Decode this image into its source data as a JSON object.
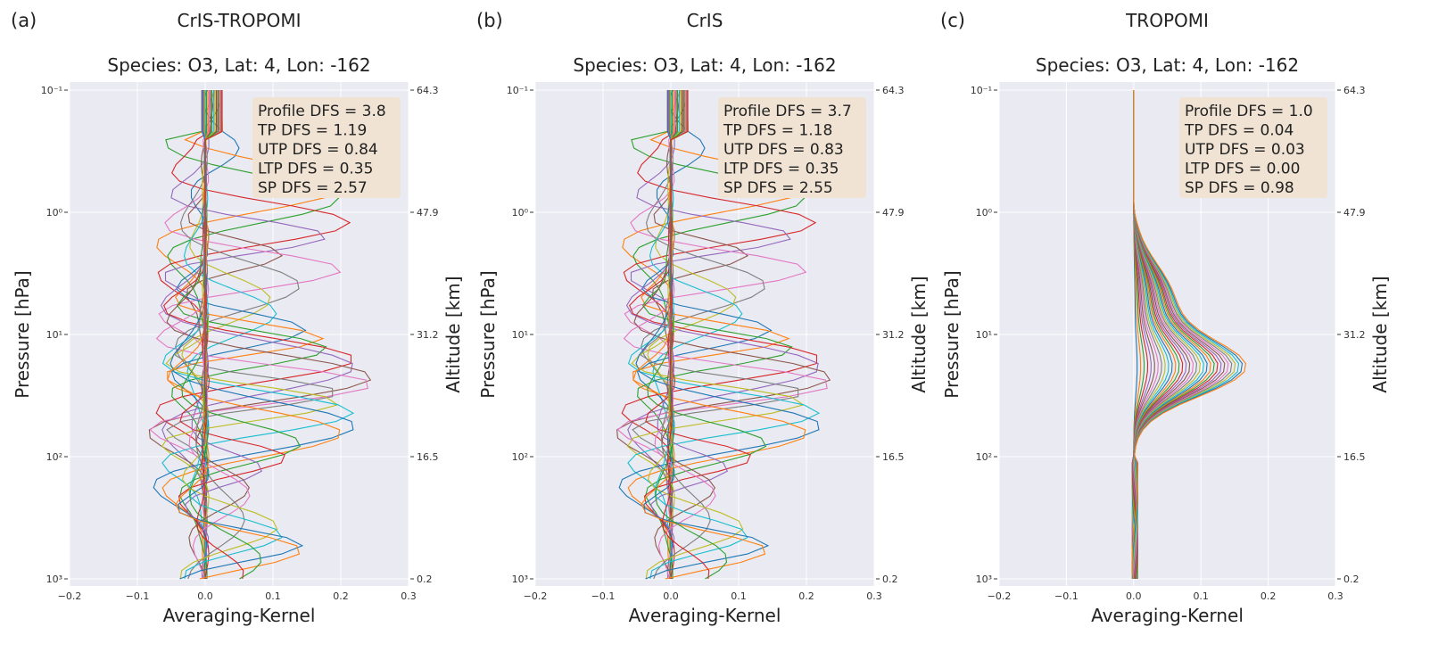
{
  "chart_data": [
    {
      "type": "line",
      "panel_label": "(a)",
      "title": "CrIS-TROPOMI",
      "subtitle": "Species: O3, Lat: 4, Lon: -162",
      "xlabel": "Averaging-Kernel",
      "ylabel": "Pressure [hPa]",
      "y2label": "Altitude [km]",
      "xlim": [
        -0.2,
        0.3
      ],
      "ylim_hPa": [
        1000,
        0.1
      ],
      "yscale": "log",
      "xticks": [
        "−0.2",
        "−0.1",
        "0.0",
        "0.1",
        "0.2",
        "0.3"
      ],
      "xtick_values": [
        -0.2,
        -0.1,
        0.0,
        0.1,
        0.2,
        0.3
      ],
      "yticks": [
        "10⁻¹",
        "10⁰",
        "10¹",
        "10²",
        "10³"
      ],
      "ytick_values": [
        0.1,
        1,
        10,
        100,
        1000
      ],
      "y2ticks": [
        "64.3",
        "47.9",
        "31.2",
        "16.5",
        "0.2"
      ],
      "grid": true,
      "stats": [
        "Profile DFS = 3.8",
        "TP DFS = 1.19",
        "UTP DFS = 0.84",
        "LTP DFS = 0.35",
        "SP DFS = 2.57"
      ],
      "kernel_peaks_hPa_value": [
        [
          0.3,
          0.04
        ],
        [
          0.6,
          0.22
        ],
        [
          0.8,
          0.2
        ],
        [
          1.2,
          0.23
        ],
        [
          1.6,
          0.18
        ],
        [
          2.2,
          0.13
        ],
        [
          3,
          0.2
        ],
        [
          4,
          0.16
        ],
        [
          5,
          0.09
        ],
        [
          7,
          0.12
        ],
        [
          9,
          0.15
        ],
        [
          11,
          0.18
        ],
        [
          13,
          0.2
        ],
        [
          16,
          0.22
        ],
        [
          19,
          0.24
        ],
        [
          22,
          0.26
        ],
        [
          26,
          0.25
        ],
        [
          30,
          0.22
        ],
        [
          36,
          0.2
        ],
        [
          45,
          0.23
        ],
        [
          55,
          0.24
        ],
        [
          65,
          0.2
        ],
        [
          80,
          0.16
        ],
        [
          100,
          0.12
        ],
        [
          130,
          0.09
        ],
        [
          170,
          0.07
        ],
        [
          220,
          0.06
        ],
        [
          300,
          0.07
        ],
        [
          380,
          0.1
        ],
        [
          450,
          0.13
        ],
        [
          520,
          0.15
        ],
        [
          600,
          0.14
        ],
        [
          700,
          0.1
        ],
        [
          850,
          0.05
        ]
      ]
    },
    {
      "type": "line",
      "panel_label": "(b)",
      "title": "CrIS",
      "subtitle": "Species: O3, Lat: 4, Lon: -162",
      "xlabel": "Averaging-Kernel",
      "ylabel": "Pressure [hPa]",
      "y2label": "Altitude [km]",
      "xlim": [
        -0.2,
        0.3
      ],
      "ylim_hPa": [
        1000,
        0.1
      ],
      "yscale": "log",
      "xticks": [
        "−0.2",
        "−0.1",
        "0.0",
        "0.1",
        "0.2",
        "0.3"
      ],
      "xtick_values": [
        -0.2,
        -0.1,
        0.0,
        0.1,
        0.2,
        0.3
      ],
      "yticks": [
        "10⁻¹",
        "10⁰",
        "10¹",
        "10²",
        "10³"
      ],
      "ytick_values": [
        0.1,
        1,
        10,
        100,
        1000
      ],
      "y2ticks": [
        "64.3",
        "47.9",
        "31.2",
        "16.5",
        "0.2"
      ],
      "grid": true,
      "stats": [
        "Profile DFS = 3.7",
        "TP DFS = 1.18",
        "UTP DFS = 0.83",
        "LTP DFS = 0.35",
        "SP DFS = 2.55"
      ],
      "kernel_peaks_hPa_value": [
        [
          0.3,
          0.04
        ],
        [
          0.6,
          0.22
        ],
        [
          0.8,
          0.2
        ],
        [
          1.2,
          0.23
        ],
        [
          1.6,
          0.18
        ],
        [
          2.2,
          0.13
        ],
        [
          3,
          0.2
        ],
        [
          4,
          0.16
        ],
        [
          5,
          0.09
        ],
        [
          7,
          0.12
        ],
        [
          9,
          0.15
        ],
        [
          11,
          0.18
        ],
        [
          13,
          0.2
        ],
        [
          16,
          0.22
        ],
        [
          19,
          0.24
        ],
        [
          22,
          0.25
        ],
        [
          26,
          0.24
        ],
        [
          30,
          0.22
        ],
        [
          36,
          0.2
        ],
        [
          45,
          0.23
        ],
        [
          55,
          0.24
        ],
        [
          65,
          0.2
        ],
        [
          80,
          0.16
        ],
        [
          100,
          0.12
        ],
        [
          130,
          0.09
        ],
        [
          170,
          0.07
        ],
        [
          220,
          0.06
        ],
        [
          300,
          0.07
        ],
        [
          380,
          0.1
        ],
        [
          450,
          0.13
        ],
        [
          520,
          0.15
        ],
        [
          600,
          0.14
        ],
        [
          700,
          0.1
        ],
        [
          850,
          0.05
        ]
      ]
    },
    {
      "type": "line",
      "panel_label": "(c)",
      "title": "TROPOMI",
      "subtitle": "Species: O3, Lat: 4, Lon: -162",
      "xlabel": "Averaging-Kernel",
      "ylabel": "Pressure [hPa]",
      "y2label": "Altitude [km]",
      "xlim": [
        -0.2,
        0.3
      ],
      "ylim_hPa": [
        1000,
        0.1
      ],
      "yscale": "log",
      "xticks": [
        "−0.2",
        "−0.1",
        "0.0",
        "0.1",
        "0.2",
        "0.3"
      ],
      "xtick_values": [
        -0.2,
        -0.1,
        0.0,
        0.1,
        0.2,
        0.3
      ],
      "yticks": [
        "10⁻¹",
        "10⁰",
        "10¹",
        "10²",
        "10³"
      ],
      "ytick_values": [
        0.1,
        1,
        10,
        100,
        1000
      ],
      "y2ticks": [
        "64.3",
        "47.9",
        "31.2",
        "16.5",
        "0.2"
      ],
      "grid": true,
      "stats": [
        "Profile DFS = 1.0",
        "TP DFS = 0.04",
        "UTP DFS = 0.03",
        "LTP DFS = 0.00",
        "SP DFS = 0.98"
      ],
      "kernel_peak_pressure_hPa": 19,
      "kernel_peak_values": [
        0.005,
        0.01,
        0.015,
        0.02,
        0.025,
        0.03,
        0.035,
        0.04,
        0.045,
        0.05,
        0.055,
        0.06,
        0.065,
        0.07,
        0.075,
        0.08,
        0.085,
        0.09,
        0.095,
        0.1,
        0.105,
        0.11,
        0.115,
        0.12,
        0.125,
        0.13,
        0.135,
        0.14,
        0.145,
        0.15,
        0.155,
        0.16
      ]
    }
  ],
  "colors": [
    "#1f77b4",
    "#ff7f0e",
    "#2ca02c",
    "#d62728",
    "#9467bd",
    "#8c564b",
    "#e377c2",
    "#7f7f7f",
    "#bcbd22",
    "#17becf"
  ]
}
